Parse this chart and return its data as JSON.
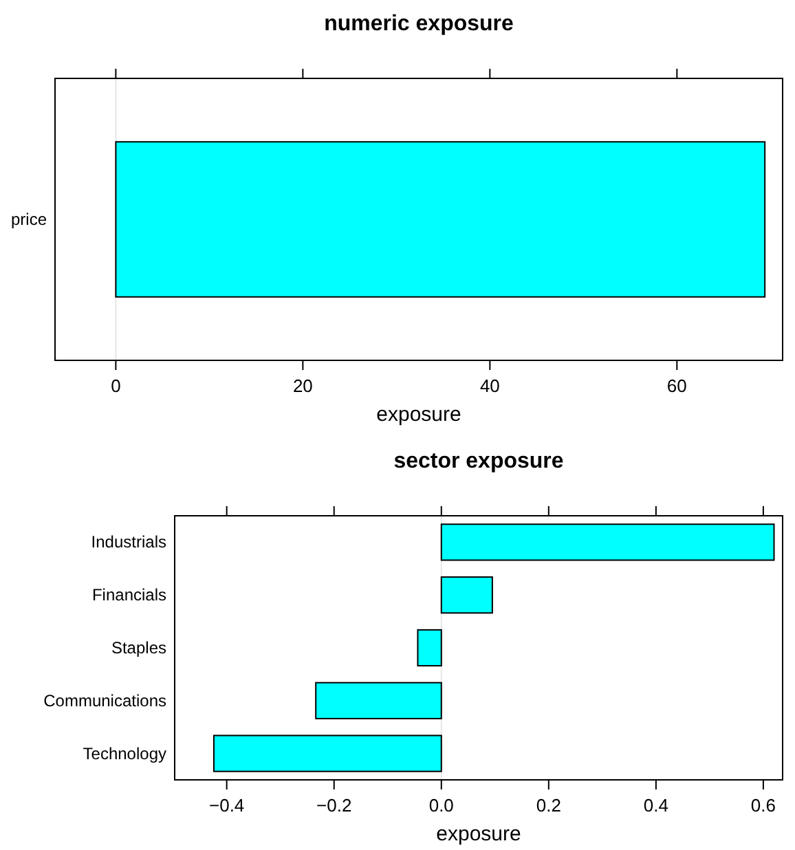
{
  "chart_data": [
    {
      "type": "bar",
      "title": "numeric exposure",
      "xlabel": "exposure",
      "orientation": "horizontal",
      "categories": [
        "price"
      ],
      "values": [
        69.4
      ],
      "color": "#00ffff",
      "xlim": [
        -6.5,
        71.3
      ],
      "xticks": [
        0,
        20,
        40,
        60
      ],
      "ref_lines": [
        {
          "axis": "x",
          "value": 0,
          "color": "#e6e6e6"
        }
      ]
    },
    {
      "type": "bar",
      "title": "sector exposure",
      "xlabel": "exposure",
      "orientation": "horizontal",
      "categories": [
        "Industrials",
        "Financials",
        "Staples",
        "Communications",
        "Technology"
      ],
      "values": [
        0.62,
        0.095,
        -0.044,
        -0.234,
        -0.424
      ],
      "color": "#00ffff",
      "xlim": [
        -0.497,
        0.636
      ],
      "xticks": [
        {
          "value": -0.4,
          "label": "−0.4"
        },
        {
          "value": -0.2,
          "label": "−0.2"
        },
        {
          "value": 0,
          "label": "0.0"
        },
        {
          "value": 0.2,
          "label": "0.2"
        },
        {
          "value": 0.4,
          "label": "0.4"
        },
        {
          "value": 0.6,
          "label": "0.6"
        }
      ],
      "ref_lines": [
        {
          "axis": "x",
          "value": 0,
          "color": "#e6e6e6"
        }
      ]
    }
  ]
}
